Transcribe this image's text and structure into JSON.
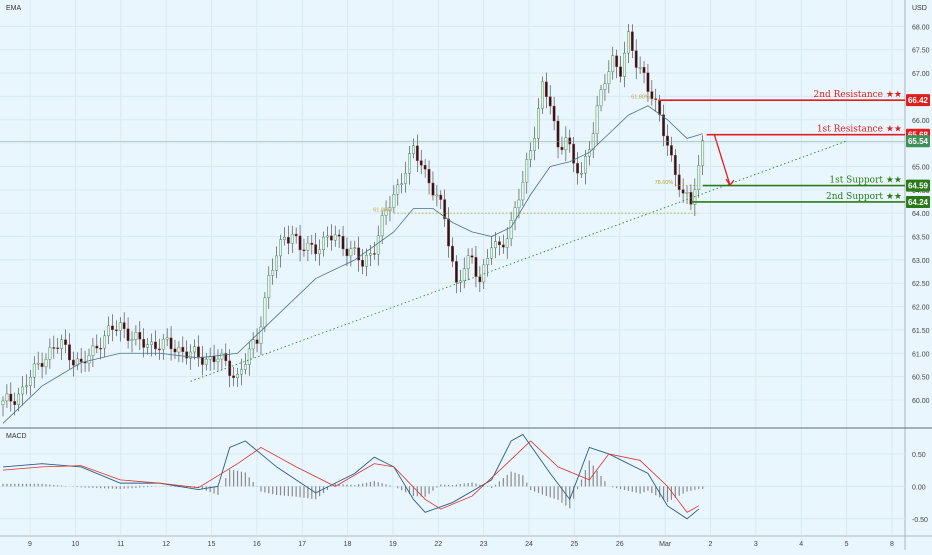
{
  "chart_data": {
    "type": "candlestick",
    "indicator_label": "EMA",
    "currency_label": "USD",
    "y_axis_labels": [
      "68.00",
      "67.50",
      "67.00",
      "66.50",
      "66.00",
      "65.50",
      "65.00",
      "64.50",
      "64.00",
      "63.50",
      "63.00",
      "62.50",
      "62.00",
      "61.50",
      "61.00",
      "60.50",
      "60.00"
    ],
    "y_axis_values": [
      68.0,
      67.5,
      67.0,
      66.5,
      66.0,
      65.5,
      65.0,
      64.5,
      64.0,
      63.5,
      63.0,
      62.5,
      62.0,
      61.5,
      61.0,
      60.5,
      60.0
    ],
    "ylim": [
      59.4,
      68.5
    ],
    "x_axis_labels": [
      "9",
      "10",
      "11",
      "12",
      "15",
      "16",
      "17",
      "18",
      "19",
      "22",
      "23",
      "24",
      "25",
      "26",
      "Mar",
      "2",
      "3",
      "4",
      "5",
      "8"
    ],
    "price_path": [
      [
        0,
        59.9
      ],
      [
        5,
        60.2
      ],
      [
        10,
        60.9
      ],
      [
        15,
        61.2
      ],
      [
        20,
        60.7
      ],
      [
        25,
        61.3
      ],
      [
        30,
        61.6
      ],
      [
        35,
        61.2
      ],
      [
        40,
        61.2
      ],
      [
        45,
        61.1
      ],
      [
        50,
        60.9
      ],
      [
        55,
        60.9
      ],
      [
        60,
        60.5
      ],
      [
        65,
        61.3
      ],
      [
        68,
        62.6
      ],
      [
        72,
        63.5
      ],
      [
        74,
        63.6
      ],
      [
        76,
        63.2
      ],
      [
        80,
        63.3
      ],
      [
        85,
        63.5
      ],
      [
        90,
        63.1
      ],
      [
        92,
        62.9
      ],
      [
        95,
        63.3
      ],
      [
        98,
        64.0
      ],
      [
        100,
        64.4
      ],
      [
        105,
        65.3
      ],
      [
        107,
        65.1
      ],
      [
        110,
        64.5
      ],
      [
        113,
        63.9
      ],
      [
        116,
        62.5
      ],
      [
        118,
        62.8
      ],
      [
        120,
        63.0
      ],
      [
        122,
        62.6
      ],
      [
        125,
        63.3
      ],
      [
        127,
        63.2
      ],
      [
        130,
        63.8
      ],
      [
        133,
        64.6
      ],
      [
        136,
        65.8
      ],
      [
        138,
        66.7
      ],
      [
        140,
        66.3
      ],
      [
        142,
        65.4
      ],
      [
        144,
        65.7
      ],
      [
        146,
        65.0
      ],
      [
        148,
        64.8
      ],
      [
        150,
        65.5
      ],
      [
        152,
        66.2
      ],
      [
        154,
        66.8
      ],
      [
        156,
        67.3
      ],
      [
        158,
        67.1
      ],
      [
        160,
        67.7
      ],
      [
        162,
        67.2
      ],
      [
        164,
        67.0
      ],
      [
        166,
        66.5
      ],
      [
        168,
        66.0
      ],
      [
        170,
        65.5
      ],
      [
        172,
        64.9
      ],
      [
        174,
        64.3
      ],
      [
        176,
        64.25
      ],
      [
        178,
        65.0
      ],
      [
        179,
        65.55
      ]
    ],
    "ema": [
      [
        0,
        59.5
      ],
      [
        10,
        60.3
      ],
      [
        20,
        60.8
      ],
      [
        30,
        61.0
      ],
      [
        40,
        61.0
      ],
      [
        50,
        60.9
      ],
      [
        60,
        61.0
      ],
      [
        70,
        61.8
      ],
      [
        80,
        62.6
      ],
      [
        90,
        63.0
      ],
      [
        100,
        63.6
      ],
      [
        105,
        64.1
      ],
      [
        110,
        64.1
      ],
      [
        115,
        63.8
      ],
      [
        120,
        63.6
      ],
      [
        125,
        63.5
      ],
      [
        130,
        63.7
      ],
      [
        135,
        64.4
      ],
      [
        140,
        65.0
      ],
      [
        145,
        65.1
      ],
      [
        150,
        65.3
      ],
      [
        155,
        65.7
      ],
      [
        160,
        66.1
      ],
      [
        165,
        66.3
      ],
      [
        170,
        66.0
      ],
      [
        175,
        65.6
      ],
      [
        179,
        65.7
      ]
    ],
    "trendline": {
      "x": [
        48,
        216
      ],
      "y": [
        60.4,
        65.55
      ]
    },
    "fib_levels": [
      {
        "label": "61.80%",
        "price": 66.42,
        "x": [
          166,
          178
        ]
      },
      {
        "label": "61.80%",
        "price": 64.0,
        "x": [
          100,
          178
        ]
      },
      {
        "label": "78.60%",
        "price": 64.59,
        "x": [
          172,
          178
        ]
      }
    ],
    "levels": [
      {
        "label": "2nd Resistance ★★",
        "price": 66.42,
        "tag": "66.42",
        "kind": "resistance",
        "x_start": 168
      },
      {
        "label": "1st Resistance ★★",
        "price": 65.68,
        "tag": "65.68",
        "kind": "resistance",
        "x_start": 180
      },
      {
        "label": "1st Support ★★",
        "price": 64.59,
        "tag": "64.59",
        "kind": "support",
        "x_start": 179
      },
      {
        "label": "2nd Support ★★",
        "price": 64.24,
        "tag": "64.24",
        "kind": "support",
        "x_start": 176
      }
    ],
    "current_price": {
      "tag": "65.54",
      "price": 65.54
    },
    "forecast_arrow": {
      "from": [
        182,
        65.68
      ],
      "to": [
        186,
        64.6
      ]
    },
    "macd": {
      "label": "MACD",
      "axis_labels": [
        "0.50",
        "0.00",
        "-0.50"
      ],
      "axis_values": [
        0.5,
        0.0,
        -0.5
      ],
      "ylim": [
        -0.75,
        0.9
      ],
      "macd_line": [
        [
          0,
          0.3
        ],
        [
          10,
          0.35
        ],
        [
          20,
          0.3
        ],
        [
          30,
          0.05
        ],
        [
          40,
          0.05
        ],
        [
          50,
          -0.05
        ],
        [
          55,
          0.0
        ],
        [
          58,
          0.6
        ],
        [
          62,
          0.7
        ],
        [
          70,
          0.3
        ],
        [
          80,
          -0.1
        ],
        [
          90,
          0.2
        ],
        [
          95,
          0.45
        ],
        [
          100,
          0.3
        ],
        [
          105,
          -0.2
        ],
        [
          108,
          -0.4
        ],
        [
          115,
          -0.25
        ],
        [
          125,
          0.1
        ],
        [
          130,
          0.7
        ],
        [
          133,
          0.8
        ],
        [
          140,
          0.2
        ],
        [
          145,
          -0.2
        ],
        [
          150,
          0.6
        ],
        [
          155,
          0.5
        ],
        [
          165,
          0.2
        ],
        [
          170,
          -0.3
        ],
        [
          175,
          -0.5
        ],
        [
          178,
          -0.35
        ]
      ],
      "signal_line": [
        [
          0,
          0.25
        ],
        [
          10,
          0.3
        ],
        [
          20,
          0.32
        ],
        [
          30,
          0.1
        ],
        [
          40,
          0.05
        ],
        [
          50,
          -0.02
        ],
        [
          60,
          0.35
        ],
        [
          66,
          0.6
        ],
        [
          75,
          0.3
        ],
        [
          85,
          0.0
        ],
        [
          95,
          0.35
        ],
        [
          100,
          0.3
        ],
        [
          108,
          -0.2
        ],
        [
          112,
          -0.35
        ],
        [
          120,
          -0.15
        ],
        [
          128,
          0.3
        ],
        [
          135,
          0.7
        ],
        [
          142,
          0.3
        ],
        [
          150,
          0.1
        ],
        [
          155,
          0.5
        ],
        [
          163,
          0.4
        ],
        [
          170,
          0.0
        ],
        [
          175,
          -0.4
        ],
        [
          178,
          -0.3
        ]
      ]
    }
  }
}
